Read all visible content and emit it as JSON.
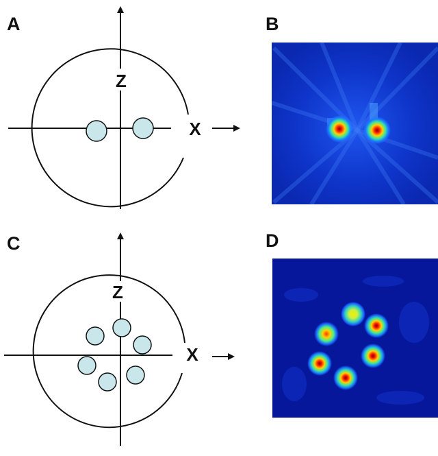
{
  "panels": {
    "a": {
      "label": "A",
      "axis_z": "Z",
      "axis_x": "X",
      "spot_count": 2
    },
    "b": {
      "label": "B",
      "colors": {
        "background": "#0a2bbf",
        "hot": "#ff1a00",
        "warm": "#ffd000"
      }
    },
    "c": {
      "label": "C",
      "axis_z": "Z",
      "axis_x": "X",
      "spot_count": 6
    },
    "d": {
      "label": "D",
      "colors": {
        "background": "#05189a",
        "hot": "#ff1a00",
        "warm": "#ffd000"
      }
    }
  },
  "colors": {
    "spot_fill": "#c9e6ea",
    "line": "#111111"
  }
}
